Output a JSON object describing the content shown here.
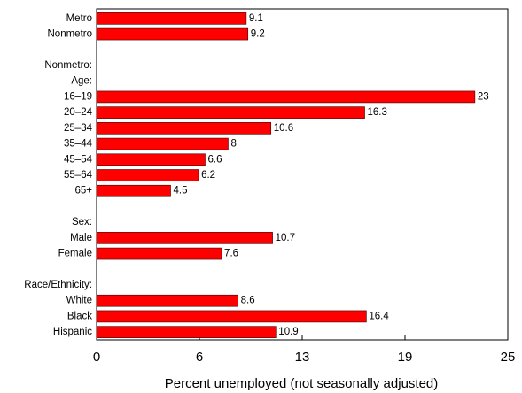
{
  "chart_data": {
    "type": "bar",
    "orientation": "horizontal",
    "categories": [
      "Metro",
      "Nonmetro",
      null,
      "Nonmetro:",
      "Age:",
      "16–19",
      "20–24",
      "25–34",
      "35–44",
      "45–54",
      "55–64",
      "65+",
      null,
      "Sex:",
      "Male",
      "Female",
      null,
      "Race/Ethnicity:",
      "White",
      "Black",
      "Hispanic"
    ],
    "values": [
      9.1,
      9.2,
      null,
      null,
      null,
      23,
      16.3,
      10.6,
      8,
      6.6,
      6.2,
      4.5,
      null,
      null,
      10.7,
      7.6,
      null,
      null,
      8.6,
      16.4,
      10.9
    ],
    "color": "#ff0000",
    "xlim": [
      0,
      25
    ],
    "xticks": [
      0,
      {
        "value": 6.25,
        "label": "6"
      },
      {
        "value": 12.5,
        "label": "13"
      },
      {
        "value": 18.75,
        "label": "19"
      },
      25
    ],
    "xlabel": "Percent unemployed (not seasonally adjusted)"
  }
}
